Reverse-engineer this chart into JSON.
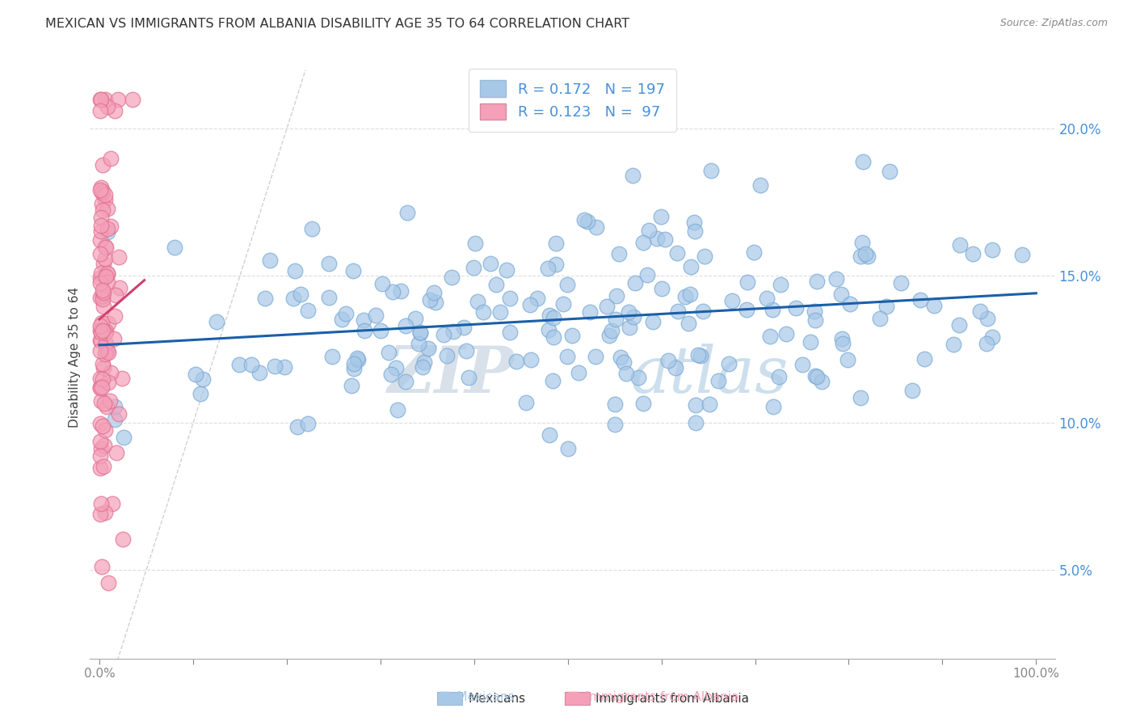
{
  "title": "MEXICAN VS IMMIGRANTS FROM ALBANIA DISABILITY AGE 35 TO 64 CORRELATION CHART",
  "source": "Source: ZipAtlas.com",
  "ylabel": "Disability Age 35 to 64",
  "xlim": [
    -0.01,
    1.02
  ],
  "ylim": [
    0.02,
    0.225
  ],
  "ytick_values": [
    0.05,
    0.1,
    0.15,
    0.2
  ],
  "xtick_values": [
    0.0,
    1.0
  ],
  "background_color": "#ffffff",
  "watermark_zip": "ZIP",
  "watermark_atlas": "atlas",
  "blue_color": "#a8c8e8",
  "pink_color": "#f4a0b8",
  "line_blue": "#1a5fa8",
  "line_pink": "#d04070",
  "diag_color": "#cccccc",
  "tick_color_y": "#4a90d9",
  "tick_color_x": "#888888",
  "legend_r1": "R = 0.172",
  "legend_n1": "N = 197",
  "legend_r2": "R = 0.123",
  "legend_n2": "N =  97",
  "seed": 42
}
